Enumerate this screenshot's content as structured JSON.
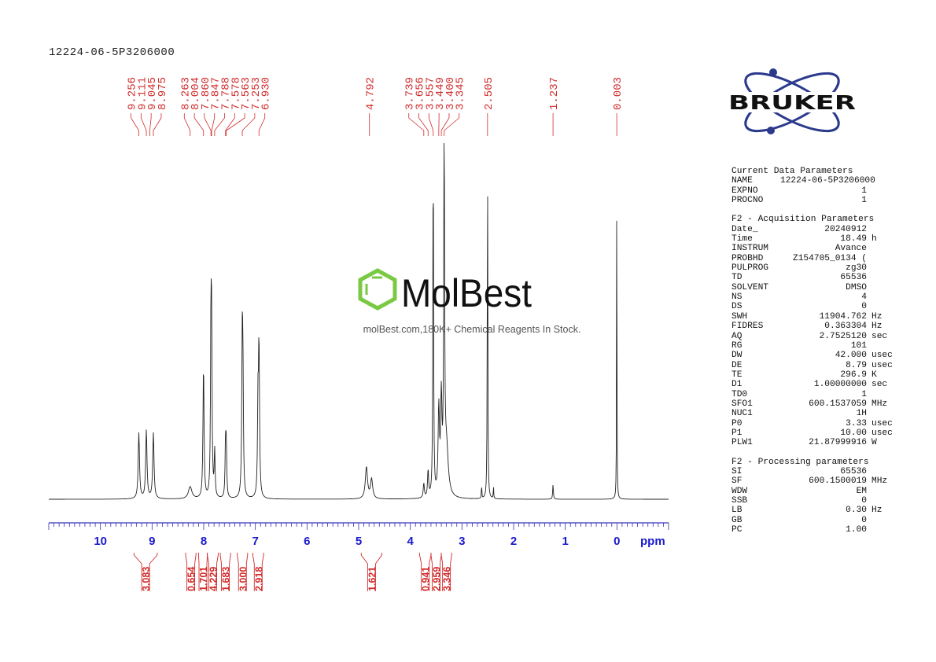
{
  "title": "12224-06-5P3206000",
  "chart_data": {
    "type": "line",
    "xlabel": "ppm",
    "xlim": [
      11.0,
      -1.0
    ],
    "x_ticks": [
      "10",
      "9",
      "8",
      "7",
      "6",
      "5",
      "4",
      "3",
      "2",
      "1",
      "0"
    ],
    "peak_labels": [
      "9.256",
      "9.111",
      "9.045",
      "8.975",
      "8.263",
      "8.004",
      "7.860",
      "7.847",
      "7.788",
      "7.578",
      "7.563",
      "7.253",
      "6.930",
      "4.792",
      "3.739",
      "3.656",
      "3.557",
      "3.449",
      "3.400",
      "3.345",
      "2.505",
      "1.237",
      "0.003"
    ],
    "integrals": [
      {
        "from": 9.35,
        "to": 8.9,
        "value": "3.083"
      },
      {
        "from": 8.35,
        "to": 8.15,
        "value": "0.654"
      },
      {
        "from": 8.1,
        "to": 7.93,
        "value": "1.701"
      },
      {
        "from": 7.93,
        "to": 7.72,
        "value": "4.229"
      },
      {
        "from": 7.68,
        "to": 7.48,
        "value": "1.683"
      },
      {
        "from": 7.35,
        "to": 7.15,
        "value": "3.000"
      },
      {
        "from": 7.05,
        "to": 6.84,
        "value": "2.918"
      },
      {
        "from": 4.95,
        "to": 4.55,
        "value": "1.621"
      },
      {
        "from": 3.82,
        "to": 3.6,
        "value": "0.941"
      },
      {
        "from": 3.6,
        "to": 3.4,
        "value": "2.959"
      },
      {
        "from": 3.4,
        "to": 3.2,
        "value": "3.346"
      }
    ],
    "peaks": [
      {
        "ppm": 9.256,
        "h": 0.27,
        "w": 0.015
      },
      {
        "ppm": 9.111,
        "h": 0.28,
        "w": 0.015
      },
      {
        "ppm": 8.975,
        "h": 0.27,
        "w": 0.015
      },
      {
        "ppm": 8.263,
        "h": 0.05,
        "w": 0.04
      },
      {
        "ppm": 8.004,
        "h": 0.55,
        "w": 0.012
      },
      {
        "ppm": 7.86,
        "h": 0.66,
        "w": 0.01
      },
      {
        "ppm": 7.847,
        "h": 0.6,
        "w": 0.01
      },
      {
        "ppm": 7.788,
        "h": 0.19,
        "w": 0.01
      },
      {
        "ppm": 7.578,
        "h": 0.22,
        "w": 0.01
      },
      {
        "ppm": 7.563,
        "h": 0.2,
        "w": 0.01
      },
      {
        "ppm": 7.253,
        "h": 0.65,
        "w": 0.012
      },
      {
        "ppm": 7.24,
        "h": 0.35,
        "w": 0.01
      },
      {
        "ppm": 6.93,
        "h": 0.63,
        "w": 0.012
      },
      {
        "ppm": 6.95,
        "h": 0.34,
        "w": 0.01
      },
      {
        "ppm": 4.85,
        "h": 0.13,
        "w": 0.025
      },
      {
        "ppm": 4.75,
        "h": 0.08,
        "w": 0.025
      },
      {
        "ppm": 3.739,
        "h": 0.06,
        "w": 0.012
      },
      {
        "ppm": 3.656,
        "h": 0.11,
        "w": 0.012
      },
      {
        "ppm": 3.557,
        "h": 1.45,
        "w": 0.008
      },
      {
        "ppm": 3.449,
        "h": 0.35,
        "w": 0.015
      },
      {
        "ppm": 3.4,
        "h": 0.38,
        "w": 0.015
      },
      {
        "ppm": 3.345,
        "h": 1.45,
        "w": 0.01
      },
      {
        "ppm": 3.3,
        "h": 0.2,
        "w": 0.04
      },
      {
        "ppm": 2.62,
        "h": 0.06,
        "w": 0.005
      },
      {
        "ppm": 2.505,
        "h": 1.45,
        "w": 0.006
      },
      {
        "ppm": 2.39,
        "h": 0.05,
        "w": 0.005
      },
      {
        "ppm": 1.237,
        "h": 0.06,
        "w": 0.008
      },
      {
        "ppm": 0.003,
        "h": 1.45,
        "w": 0.004
      }
    ]
  },
  "watermark": {
    "brand": "MolBest",
    "tagline": "molBest.com,180K+ Chemical Reagents In Stock."
  },
  "logo_text": "BRUKER",
  "params": {
    "current_title": "Current Data Parameters",
    "current": [
      {
        "k": "NAME",
        "v": "12224-06-5P3206000",
        "u": ""
      },
      {
        "k": "EXPNO",
        "v": "1",
        "u": ""
      },
      {
        "k": "PROCNO",
        "v": "1",
        "u": ""
      }
    ],
    "acq_title": "F2 - Acquisition Parameters",
    "acq": [
      {
        "k": "Date_",
        "v": "20240912",
        "u": ""
      },
      {
        "k": "Time",
        "v": "18.49",
        "u": "h"
      },
      {
        "k": "INSTRUM",
        "v": "Avance",
        "u": ""
      },
      {
        "k": "PROBHD",
        "v": "Z154705_0134 (",
        "u": ""
      },
      {
        "k": "PULPROG",
        "v": "zg30",
        "u": ""
      },
      {
        "k": "TD",
        "v": "65536",
        "u": ""
      },
      {
        "k": "SOLVENT",
        "v": "DMSO",
        "u": ""
      },
      {
        "k": "NS",
        "v": "4",
        "u": ""
      },
      {
        "k": "DS",
        "v": "0",
        "u": ""
      },
      {
        "k": "SWH",
        "v": "11904.762",
        "u": "Hz"
      },
      {
        "k": "FIDRES",
        "v": "0.363304",
        "u": "Hz"
      },
      {
        "k": "AQ",
        "v": "2.7525120",
        "u": "sec"
      },
      {
        "k": "RG",
        "v": "101",
        "u": ""
      },
      {
        "k": "DW",
        "v": "42.000",
        "u": "usec"
      },
      {
        "k": "DE",
        "v": "8.79",
        "u": "usec"
      },
      {
        "k": "TE",
        "v": "296.9",
        "u": "K"
      },
      {
        "k": "D1",
        "v": "1.00000000",
        "u": "sec"
      },
      {
        "k": "TD0",
        "v": "1",
        "u": ""
      },
      {
        "k": "SFO1",
        "v": "600.1537059",
        "u": "MHz"
      },
      {
        "k": "NUC1",
        "v": "1H",
        "u": ""
      },
      {
        "k": "P0",
        "v": "3.33",
        "u": "usec"
      },
      {
        "k": "P1",
        "v": "10.00",
        "u": "usec"
      },
      {
        "k": "PLW1",
        "v": "21.87999916",
        "u": "W"
      }
    ],
    "proc_title": "F2 - Processing parameters",
    "proc": [
      {
        "k": "SI",
        "v": "65536",
        "u": ""
      },
      {
        "k": "SF",
        "v": "600.1500019",
        "u": "MHz"
      },
      {
        "k": "WDW",
        "v": "EM",
        "u": ""
      },
      {
        "k": "SSB",
        "v": "0",
        "u": ""
      },
      {
        "k": "LB",
        "v": "0.30",
        "u": "Hz"
      },
      {
        "k": "GB",
        "v": "0",
        "u": ""
      },
      {
        "k": "PC",
        "v": "1.00",
        "u": ""
      }
    ]
  },
  "colors": {
    "peak_label": "#d12b2b",
    "axis": "#3333bb",
    "tick_label": "#1a1acc",
    "trace": "#222222",
    "integral": "#d12b2b",
    "logo": "#2b3a8c",
    "molbest": "#7ac943"
  }
}
